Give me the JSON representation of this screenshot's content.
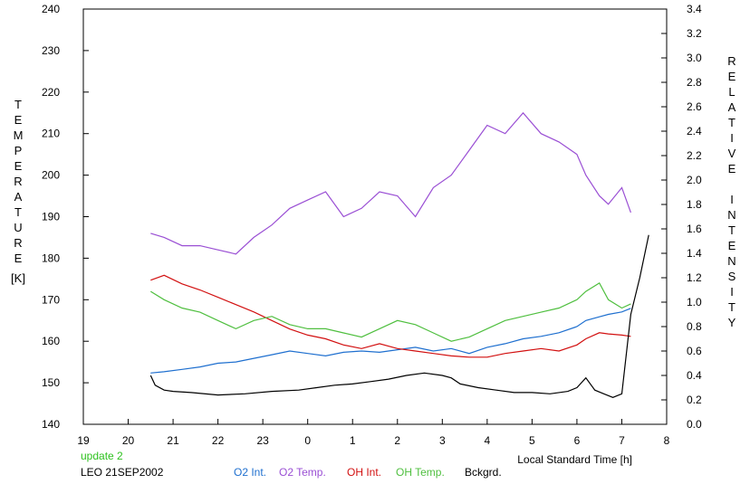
{
  "chart_data": {
    "type": "line",
    "x_axis": {
      "label": "Local Standard Time [h]",
      "range": [
        19,
        32
      ],
      "tick_labels": [
        "19",
        "20",
        "21",
        "22",
        "23",
        "0",
        "1",
        "2",
        "3",
        "4",
        "5",
        "6",
        "7",
        "8"
      ]
    },
    "y_left": {
      "label": "TEMPERATURE",
      "unit": "[K]",
      "range": [
        140,
        240
      ],
      "tick_labels": [
        "140",
        "150",
        "160",
        "170",
        "180",
        "190",
        "200",
        "210",
        "220",
        "230",
        "240"
      ]
    },
    "y_right": {
      "label": "RELATIVE INTENSITY",
      "range": [
        0.0,
        3.4
      ],
      "tick_labels": [
        "0.0",
        "0.2",
        "0.4",
        "0.6",
        "0.8",
        "1.0",
        "1.2",
        "1.4",
        "1.6",
        "1.8",
        "2.0",
        "2.2",
        "2.4",
        "2.6",
        "2.8",
        "3.0",
        "3.2",
        "3.4"
      ]
    },
    "grid": false,
    "legend_position": "bottom",
    "series": [
      {
        "name": "O2 Int.",
        "color": "#1e6fcf",
        "axis": "right",
        "x": [
          20.5,
          20.8,
          21.2,
          21.6,
          22.0,
          22.4,
          22.8,
          23.2,
          23.6,
          24.0,
          24.4,
          24.8,
          25.2,
          25.6,
          26.0,
          26.4,
          26.8,
          27.2,
          27.6,
          28.0,
          28.4,
          28.8,
          29.2,
          29.6,
          30.0,
          30.2,
          30.5,
          30.7,
          31.0,
          31.2
        ],
        "y": [
          0.42,
          0.43,
          0.45,
          0.47,
          0.5,
          0.51,
          0.54,
          0.57,
          0.6,
          0.58,
          0.56,
          0.59,
          0.6,
          0.59,
          0.61,
          0.63,
          0.6,
          0.62,
          0.58,
          0.63,
          0.66,
          0.7,
          0.72,
          0.75,
          0.8,
          0.85,
          0.88,
          0.9,
          0.92,
          0.95
        ]
      },
      {
        "name": "O2 Temp.",
        "color": "#9a4fd4",
        "axis": "left",
        "x": [
          20.5,
          20.8,
          21.2,
          21.6,
          22.0,
          22.4,
          22.8,
          23.2,
          23.6,
          24.0,
          24.4,
          24.8,
          25.2,
          25.6,
          26.0,
          26.4,
          26.8,
          27.2,
          27.6,
          28.0,
          28.4,
          28.8,
          29.2,
          29.6,
          30.0,
          30.2,
          30.5,
          30.7,
          31.0,
          31.2
        ],
        "y": [
          186,
          185,
          183,
          183,
          182,
          181,
          185,
          188,
          192,
          194,
          196,
          190,
          192,
          196,
          195,
          190,
          197,
          200,
          206,
          212,
          210,
          215,
          210,
          208,
          205,
          200,
          195,
          193,
          197,
          191
        ]
      },
      {
        "name": "OH Int.",
        "color": "#d21010",
        "axis": "right",
        "x": [
          20.5,
          20.8,
          21.2,
          21.6,
          22.0,
          22.4,
          22.8,
          23.2,
          23.6,
          24.0,
          24.4,
          24.8,
          25.2,
          25.6,
          26.0,
          26.4,
          26.8,
          27.2,
          27.6,
          28.0,
          28.4,
          28.8,
          29.2,
          29.6,
          30.0,
          30.2,
          30.5,
          30.7,
          31.0,
          31.2
        ],
        "y": [
          1.18,
          1.22,
          1.15,
          1.1,
          1.04,
          0.98,
          0.92,
          0.85,
          0.78,
          0.73,
          0.7,
          0.65,
          0.62,
          0.66,
          0.62,
          0.6,
          0.58,
          0.56,
          0.55,
          0.55,
          0.58,
          0.6,
          0.62,
          0.6,
          0.65,
          0.7,
          0.75,
          0.74,
          0.73,
          0.72
        ]
      },
      {
        "name": "OH Temp.",
        "color": "#4fbf3f",
        "axis": "left",
        "x": [
          20.5,
          20.8,
          21.2,
          21.6,
          22.0,
          22.4,
          22.8,
          23.2,
          23.6,
          24.0,
          24.4,
          24.8,
          25.2,
          25.6,
          26.0,
          26.4,
          26.8,
          27.2,
          27.6,
          28.0,
          28.4,
          28.8,
          29.2,
          29.6,
          30.0,
          30.2,
          30.5,
          30.7,
          31.0,
          31.2
        ],
        "y": [
          172,
          170,
          168,
          167,
          165,
          163,
          165,
          166,
          164,
          163,
          163,
          162,
          161,
          163,
          165,
          164,
          162,
          160,
          161,
          163,
          165,
          166,
          167,
          168,
          170,
          172,
          174,
          170,
          168,
          169
        ]
      },
      {
        "name": "Bckgrd.",
        "color": "#000000",
        "axis": "right",
        "x": [
          20.5,
          20.6,
          20.8,
          21.0,
          21.4,
          22.0,
          22.6,
          23.2,
          23.8,
          24.2,
          24.6,
          25.0,
          25.4,
          25.8,
          26.2,
          26.6,
          27.0,
          27.2,
          27.4,
          27.8,
          28.2,
          28.6,
          29.0,
          29.4,
          29.8,
          30.0,
          30.2,
          30.4,
          30.6,
          30.8,
          31.0,
          31.2,
          31.4,
          31.6
        ],
        "y": [
          0.4,
          0.32,
          0.28,
          0.27,
          0.26,
          0.24,
          0.25,
          0.27,
          0.28,
          0.3,
          0.32,
          0.33,
          0.35,
          0.37,
          0.4,
          0.42,
          0.4,
          0.38,
          0.33,
          0.3,
          0.28,
          0.26,
          0.26,
          0.25,
          0.27,
          0.3,
          0.38,
          0.28,
          0.25,
          0.22,
          0.25,
          0.9,
          1.2,
          1.55
        ]
      }
    ]
  },
  "footer": {
    "update": "update 2",
    "site_date": "LEO 21SEP2002",
    "legend": {
      "o2_int": "O2 Int.",
      "o2_temp": "O2 Temp.",
      "oh_int": "OH Int.",
      "oh_temp": "OH Temp.",
      "bckgrd": "Bckgrd."
    }
  }
}
